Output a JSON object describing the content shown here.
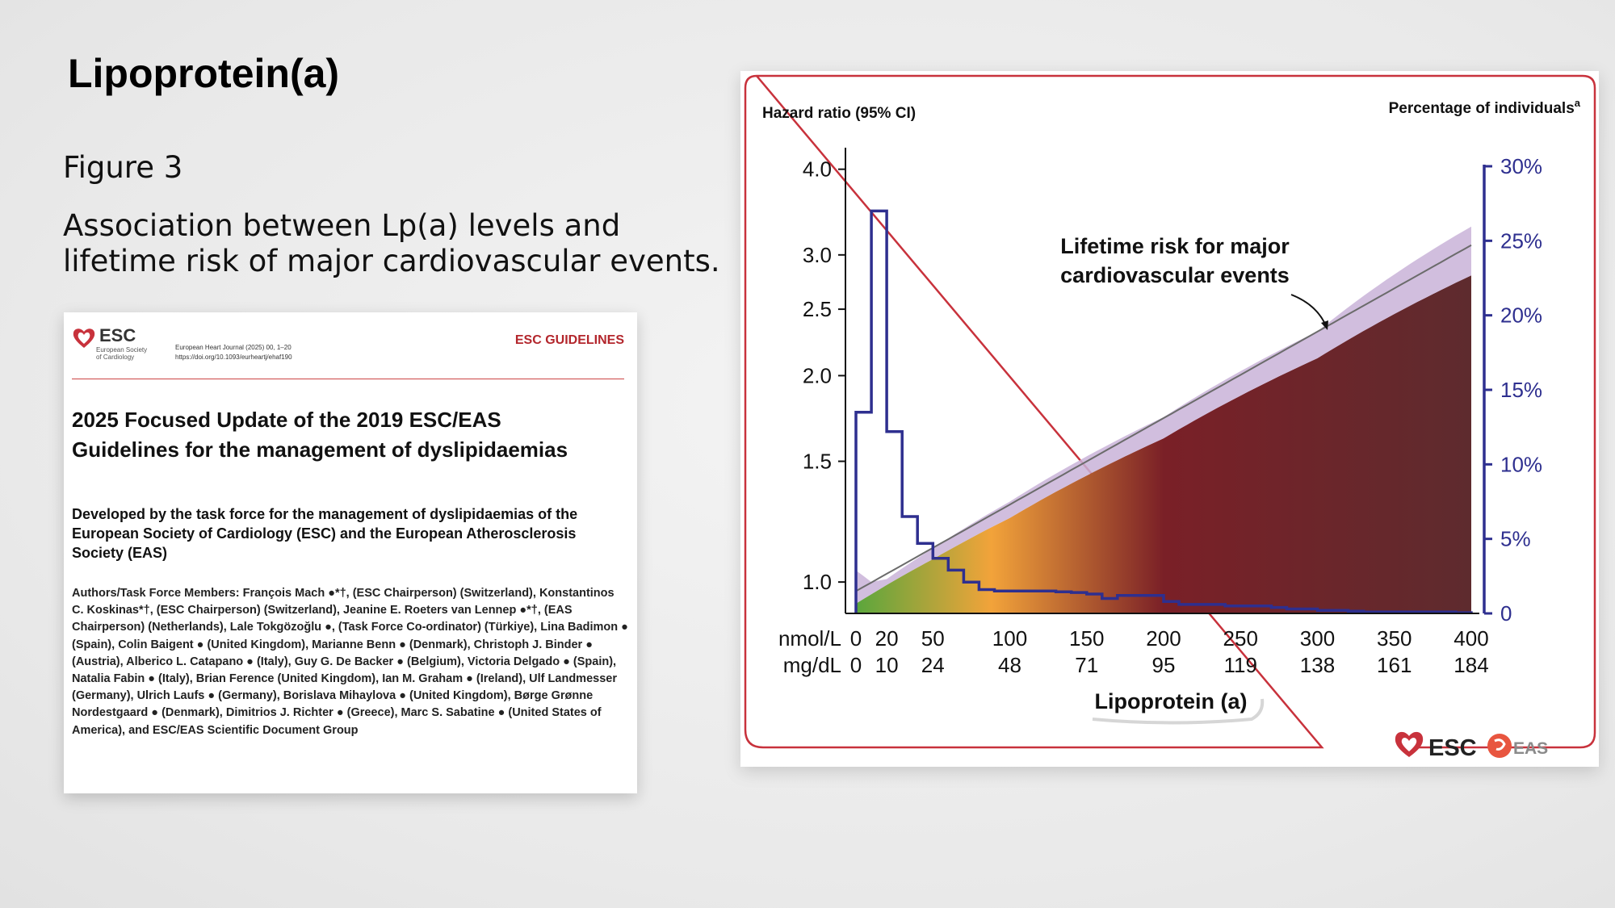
{
  "slide": {
    "title": "Lipoprotein(a)",
    "figure_label": "Figure 3",
    "figure_caption": "Association between Lp(a) levels and lifetime risk of major cardiovascular events."
  },
  "paper": {
    "logo_text": "ESC",
    "logo_sub": "European Society of Cardiology",
    "journal_line1": "European Heart Journal (2025) 00, 1–20",
    "journal_line2": "https://doi.org/10.1093/eurheartj/ehaf190",
    "tag": "ESC GUIDELINES",
    "title": "2025 Focused Update of the 2019 ESC/EAS Guidelines for the management of dyslipidaemias",
    "subtitle": "Developed by the task force for the management of dyslipidaemias of the European Society of Cardiology (ESC) and the European Atherosclerosis Society (EAS)",
    "authors": "Authors/Task Force Members: François Mach ●*†, (ESC Chairperson) (Switzerland), Konstantinos C. Koskinas*†, (ESC Chairperson) (Switzerland), Jeanine E. Roeters van Lennep ●*†, (EAS Chairperson) (Netherlands), Lale Tokgözoğlu ●, (Task Force Co-ordinator) (Türkiye), Lina Badimon ● (Spain), Colin Baigent ● (United Kingdom), Marianne Benn ● (Denmark), Christoph J. Binder ● (Austria), Alberico L. Catapano ● (Italy), Guy G. De Backer ● (Belgium), Victoria Delgado ● (Spain), Natalia Fabin ● (Italy), Brian Ference (United Kingdom), Ian M. Graham ● (Ireland), Ulf Landmesser (Germany), Ulrich Laufs ● (Germany), Borislava Mihaylova ● (United Kingdom), Børge Grønne Nordestgaard ● (Denmark), Dimitrios J. Richter ● (Greece), Marc S. Sabatine ● (United States of America), and ESC/EAS Scientific Document Group"
  },
  "chart_footer": {
    "esc": "ESC",
    "eas": "EAS"
  },
  "colors": {
    "frame": "#c8323c",
    "histogram": "#2e2f8f",
    "ci_band": "#c9b3d8",
    "hr_line": "#6b6b6b",
    "area_green": "#5aa63c",
    "area_orange": "#f2a33a",
    "area_red": "#7a2027",
    "area_dark": "#5e2b2e"
  },
  "chart_data": {
    "type": "line",
    "left_axis_title": "Hazard ratio (95% CI)",
    "right_axis_title": "Percentage of individuals",
    "right_axis_title_sup": "a",
    "annotation": "Lifetime risk for major cardiovascular events",
    "annotation_lines": [
      "Lifetime risk for major",
      "cardiovascular events"
    ],
    "xlabel": "Lipoprotein (a)",
    "x_unit_nmol": "nmol/L",
    "x_unit_mgdl": "mg/dL",
    "x_ticks_nmol": [
      0,
      20,
      50,
      100,
      150,
      200,
      250,
      300,
      350,
      400
    ],
    "x_ticks_mgdl": [
      "0",
      "10",
      "24",
      "48",
      "71",
      "95",
      "119",
      "138",
      "161",
      "184"
    ],
    "xlim": [
      0,
      400
    ],
    "y_left_scale": "log",
    "y_left_ticks": [
      1.0,
      1.5,
      2.0,
      2.5,
      3.0,
      4.0
    ],
    "y_left_tick_labels": [
      "1.0",
      "1.5",
      "2.0",
      "2.5",
      "3.0",
      "4.0"
    ],
    "y_left_lim": [
      0.9,
      4.3
    ],
    "y_right_ticks": [
      0,
      5,
      10,
      15,
      20,
      25,
      30
    ],
    "y_right_tick_labels": [
      "0",
      "5%",
      "10%",
      "15%",
      "20%",
      "25%",
      "30%"
    ],
    "y_right_lim": [
      0,
      30
    ],
    "hazard_ratio_line": {
      "x": [
        0,
        400
      ],
      "y": [
        0.97,
        3.1
      ]
    },
    "hazard_ratio_ci": {
      "x": [
        0,
        10,
        20,
        50,
        100,
        200,
        300,
        400
      ],
      "lower": [
        0.93,
        0.96,
        0.99,
        1.08,
        1.24,
        1.62,
        2.12,
        2.8
      ],
      "upper": [
        1.04,
        1.0,
        1.01,
        1.12,
        1.31,
        1.74,
        2.32,
        3.3
      ]
    },
    "distribution_histogram": {
      "bin_edges": [
        0,
        10,
        20,
        30,
        40,
        50,
        60,
        70,
        80,
        90,
        100,
        110,
        120,
        130,
        140,
        150,
        160,
        170,
        180,
        190,
        200,
        210,
        220,
        230,
        240,
        250,
        260,
        270,
        280,
        290,
        300,
        310,
        320,
        330,
        340,
        350,
        360,
        370,
        380,
        390,
        400
      ],
      "percent": [
        13.5,
        27,
        12.2,
        6.5,
        4.7,
        3.7,
        2.9,
        2.1,
        1.6,
        1.5,
        1.5,
        1.5,
        1.5,
        1.45,
        1.4,
        1.3,
        1.0,
        1.2,
        1.2,
        1.2,
        0.8,
        0.6,
        0.6,
        0.6,
        0.5,
        0.5,
        0.5,
        0.4,
        0.3,
        0.3,
        0.2,
        0.2,
        0.15,
        0.1,
        0.1,
        0.1,
        0.1,
        0.1,
        0.1,
        0.05
      ]
    }
  }
}
